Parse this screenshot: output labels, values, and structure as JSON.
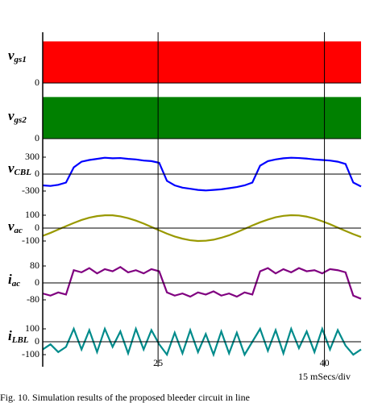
{
  "chart_data": {
    "type": "line",
    "x": [
      14.6,
      15.3,
      16.0,
      16.7,
      17.4,
      18.1,
      18.8,
      19.5,
      20.2,
      20.9,
      21.6,
      22.3,
      23.0,
      23.7,
      24.4,
      25.1,
      25.8,
      26.5,
      27.2,
      27.9,
      28.6,
      29.3,
      30.0,
      30.7,
      31.4,
      32.1,
      32.8,
      33.5,
      34.2,
      34.9,
      35.6,
      36.3,
      37.0,
      37.7,
      38.4,
      39.1,
      39.8,
      40.5,
      41.2,
      41.9,
      42.6,
      43.3
    ],
    "xlim": [
      14.6,
      43.3
    ],
    "xticks": [
      25,
      40
    ],
    "x_label": "15 mSecs/div",
    "grid": true,
    "caption": "Fig. 10. Simulation results of the proposed bleeder circuit in line",
    "panels": [
      {
        "type": "area",
        "symbol": "v",
        "subscript": "gs1",
        "color": "#ff0000",
        "ylim": [
          0,
          1.2
        ],
        "yticks": [
          0
        ],
        "values": [
          1,
          1,
          1,
          1,
          1,
          1,
          1,
          1,
          1,
          1,
          1,
          1,
          1,
          1,
          1,
          1,
          1,
          1,
          1,
          1,
          1,
          1,
          1,
          1,
          1,
          1,
          1,
          1,
          1,
          1,
          1,
          1,
          1,
          1,
          1,
          1,
          1,
          1,
          1,
          1,
          1,
          1
        ]
      },
      {
        "type": "area",
        "symbol": "v",
        "subscript": "gs2",
        "color": "#008000",
        "ylim": [
          0,
          1.2
        ],
        "yticks": [
          0
        ],
        "values": [
          1,
          1,
          1,
          1,
          1,
          1,
          1,
          1,
          1,
          1,
          1,
          1,
          1,
          1,
          1,
          1,
          1,
          1,
          1,
          1,
          1,
          1,
          1,
          1,
          1,
          1,
          1,
          1,
          1,
          1,
          1,
          1,
          1,
          1,
          1,
          1,
          1,
          1,
          1,
          1,
          1,
          1
        ]
      },
      {
        "type": "line",
        "symbol": "v",
        "subscript": "CBL",
        "color": "#0000ff",
        "ylim": [
          -400,
          400
        ],
        "yticks": [
          300,
          0,
          -300
        ],
        "values": [
          -200,
          -210,
          -190,
          -150,
          120,
          220,
          250,
          270,
          290,
          280,
          285,
          270,
          260,
          240,
          230,
          200,
          -120,
          -200,
          -240,
          -260,
          -280,
          -290,
          -280,
          -270,
          -250,
          -230,
          -200,
          -150,
          150,
          230,
          260,
          280,
          290,
          285,
          275,
          260,
          250,
          240,
          220,
          180,
          -150,
          -220
        ]
      },
      {
        "type": "line",
        "symbol": "v",
        "subscript": "ac",
        "color": "#999900",
        "ylim": [
          -150,
          150
        ],
        "yticks": [
          100,
          0,
          -100
        ],
        "values": [
          -60,
          -37,
          -11,
          15,
          40,
          63,
          81,
          93,
          99,
          99,
          91,
          77,
          58,
          35,
          9,
          -17,
          -43,
          -65,
          -82,
          -94,
          -100,
          -98,
          -90,
          -75,
          -56,
          -32,
          -6,
          20,
          45,
          66,
          84,
          95,
          100,
          98,
          89,
          74,
          53,
          30,
          4,
          -22,
          -47,
          -69
        ]
      },
      {
        "type": "line",
        "symbol": "i",
        "subscript": "ac",
        "color": "#800080",
        "ylim": [
          -120,
          120
        ],
        "yticks": [
          80,
          0,
          -80
        ],
        "values": [
          -50,
          -60,
          -45,
          -55,
          60,
          50,
          70,
          45,
          65,
          55,
          75,
          50,
          60,
          45,
          65,
          55,
          -45,
          -60,
          -50,
          -65,
          -45,
          -55,
          -40,
          -60,
          -50,
          -65,
          -45,
          -55,
          55,
          70,
          45,
          65,
          50,
          70,
          55,
          60,
          45,
          65,
          60,
          50,
          -60,
          -75
        ]
      },
      {
        "type": "line",
        "symbol": "i",
        "subscript": "LBL",
        "color": "#008b8b",
        "ylim": [
          -140,
          140
        ],
        "yticks": [
          100,
          0,
          -100
        ],
        "values": [
          -60,
          -20,
          -80,
          -40,
          100,
          -60,
          90,
          -80,
          100,
          -40,
          80,
          -90,
          100,
          -60,
          90,
          -20,
          -100,
          70,
          -90,
          90,
          -80,
          60,
          -100,
          80,
          -90,
          70,
          -100,
          0,
          100,
          -70,
          90,
          -90,
          100,
          -50,
          80,
          -80,
          100,
          -60,
          90,
          -30,
          -100,
          -60
        ]
      }
    ]
  }
}
